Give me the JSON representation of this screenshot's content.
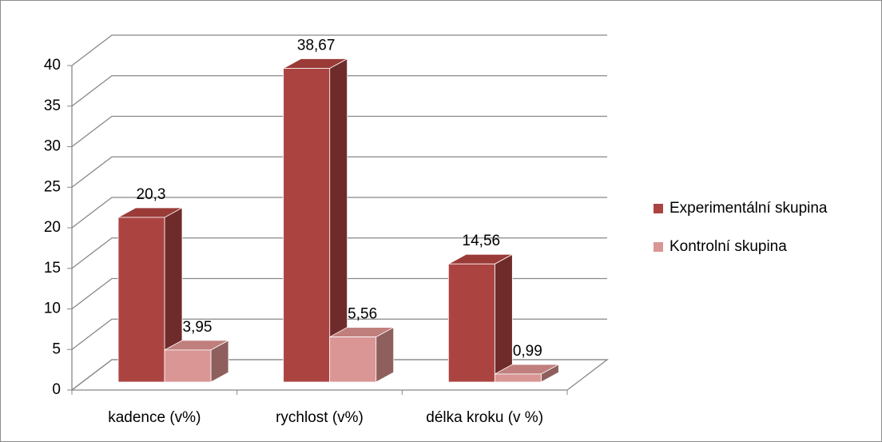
{
  "chart_data": {
    "type": "bar3d",
    "categories": [
      "kadence (v%)",
      "rychlost  (v%)",
      "délka kroku (v %)"
    ],
    "series": [
      {
        "name": "Experimentální skupina",
        "color": "#ab4441",
        "side_color": "#6f2b2a",
        "top_color": "#9a3b38",
        "values": [
          20.3,
          38.67,
          14.56
        ],
        "value_labels": [
          "20,3",
          "38,67",
          "14,56"
        ]
      },
      {
        "name": "Kontrolní skupina",
        "color": "#d99694",
        "side_color": "#8f5f5e",
        "top_color": "#c07f7d",
        "values": [
          3.95,
          5.56,
          0.99
        ],
        "value_labels": [
          "3,95",
          "5,56",
          "0,99"
        ]
      }
    ],
    "ylim": [
      0,
      40
    ],
    "yticks": [
      0,
      5,
      10,
      15,
      20,
      25,
      30,
      35,
      40
    ],
    "grid": true,
    "legend": "right"
  }
}
